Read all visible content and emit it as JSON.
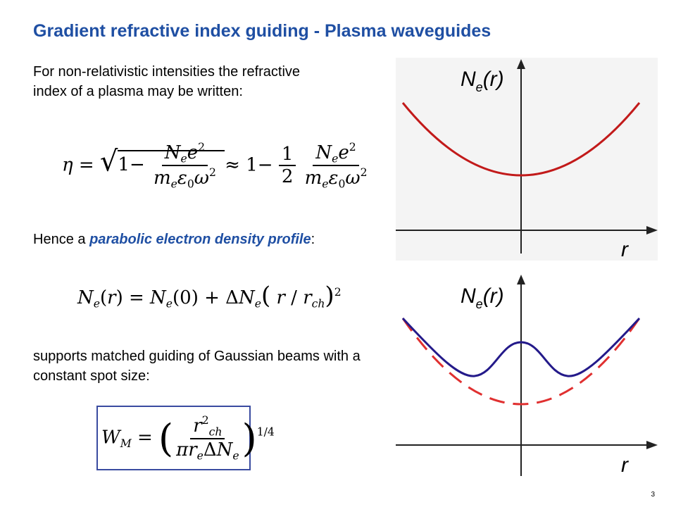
{
  "title": "Gradient refractive index guiding - Plasma waveguides",
  "para1": "For non-relativistic intensities the refractive index of a plasma may be written:",
  "para2_prefix": "Hence a ",
  "para2_emph": "parabolic electron density profile",
  "para2_suffix": ":",
  "para3": "supports matched guiding of Gaussian beams with a constant spot size:",
  "eq1": {
    "lhs": "η =",
    "approx": "≈ 1−",
    "one": "1",
    "two": "2"
  },
  "eq2": {
    "text": "N",
    "rest": "(r) = N",
    "rest2": "(0) + ΔN",
    "rest3": "( r / r",
    "close": ")"
  },
  "eq3": {
    "lhs": "W",
    "sub": "M",
    "eq": "=",
    "exp": "1/4"
  },
  "plot_top": {
    "ylabel_main": "N",
    "ylabel_sub": "e",
    "ylabel_tail": "(r)",
    "xlabel": "r",
    "curve_color": "#c21a1a"
  },
  "plot_bottom": {
    "ylabel_main": "N",
    "ylabel_sub": "e",
    "ylabel_tail": "(r)",
    "xlabel": "r",
    "solid_color": "#241a8a",
    "dashed_color": "#e03030"
  },
  "page_number": "3"
}
